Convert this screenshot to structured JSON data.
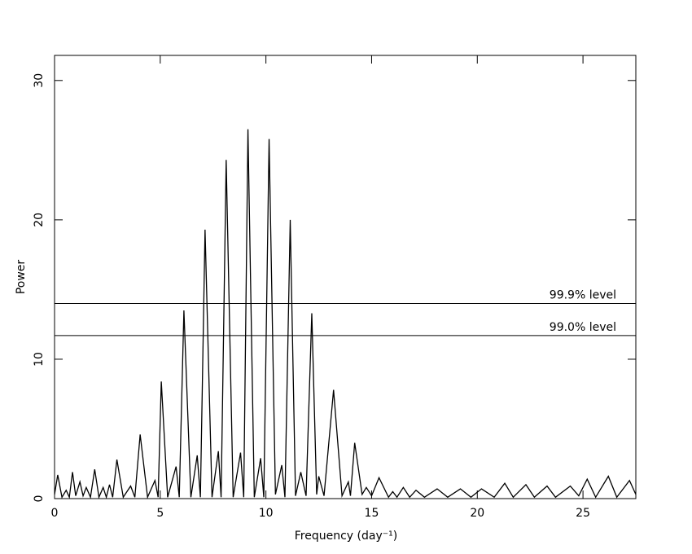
{
  "chart_data": {
    "type": "line",
    "xlabel": "Frequency (day⁻¹)",
    "ylabel": "Power",
    "xlim": [
      0,
      27.5
    ],
    "ylim": [
      0,
      31.8
    ],
    "xticks": [
      0,
      5,
      10,
      15,
      20,
      25
    ],
    "yticks": [
      0,
      10,
      20,
      30
    ],
    "levels": [
      {
        "value": 14.0,
        "label": "99.9% level"
      },
      {
        "value": 11.7,
        "label": "99.0% level"
      }
    ],
    "series": [
      {
        "color": "#000000",
        "x": [
          0,
          0.15,
          0.35,
          0.55,
          0.7,
          0.85,
          1.0,
          1.2,
          1.35,
          1.5,
          1.7,
          1.9,
          2.1,
          2.3,
          2.45,
          2.6,
          2.75,
          2.95,
          3.25,
          3.6,
          3.8,
          4.05,
          4.4,
          4.75,
          4.9,
          5.05,
          5.35,
          5.75,
          5.9,
          6.12,
          6.45,
          6.75,
          6.9,
          7.12,
          7.45,
          7.75,
          7.88,
          8.12,
          8.45,
          8.8,
          8.95,
          9.15,
          9.45,
          9.75,
          9.9,
          10.15,
          10.45,
          10.75,
          10.9,
          11.15,
          11.4,
          11.65,
          11.9,
          12.17,
          12.4,
          12.5,
          12.75,
          13.2,
          13.6,
          13.9,
          14.0,
          14.2,
          14.55,
          14.75,
          15.0,
          15.35,
          15.8,
          16.0,
          16.2,
          16.5,
          16.8,
          17.1,
          17.5,
          18.1,
          18.6,
          19.2,
          19.7,
          20.2,
          20.8,
          21.3,
          21.7,
          22.3,
          22.7,
          23.3,
          23.7,
          24.4,
          24.8,
          25.2,
          25.6,
          26.2,
          26.6,
          27.2,
          27.5
        ],
        "values": [
          0.3,
          1.7,
          0.1,
          0.6,
          0.1,
          1.9,
          0.2,
          1.2,
          0.2,
          0.8,
          0.1,
          2.1,
          0.1,
          0.8,
          0.1,
          1.0,
          0.1,
          2.8,
          0.1,
          0.9,
          0.1,
          4.6,
          0.1,
          1.3,
          0.1,
          8.4,
          0.1,
          2.3,
          0.1,
          13.5,
          0.1,
          3.1,
          0.1,
          19.3,
          0.1,
          3.4,
          0.1,
          24.3,
          0.1,
          3.3,
          0.1,
          26.5,
          0.1,
          2.9,
          0.1,
          25.8,
          0.3,
          2.4,
          0.1,
          20.0,
          0.2,
          1.9,
          0.2,
          13.3,
          0.3,
          1.6,
          0.2,
          7.8,
          0.2,
          1.2,
          0.2,
          4.0,
          0.3,
          0.8,
          0.2,
          1.5,
          0.1,
          0.5,
          0.1,
          0.8,
          0.1,
          0.6,
          0.1,
          0.7,
          0.1,
          0.7,
          0.1,
          0.7,
          0.1,
          1.1,
          0.1,
          1.0,
          0.1,
          0.9,
          0.1,
          0.9,
          0.2,
          1.4,
          0.1,
          1.6,
          0.1,
          1.3,
          0.3
        ]
      }
    ]
  }
}
